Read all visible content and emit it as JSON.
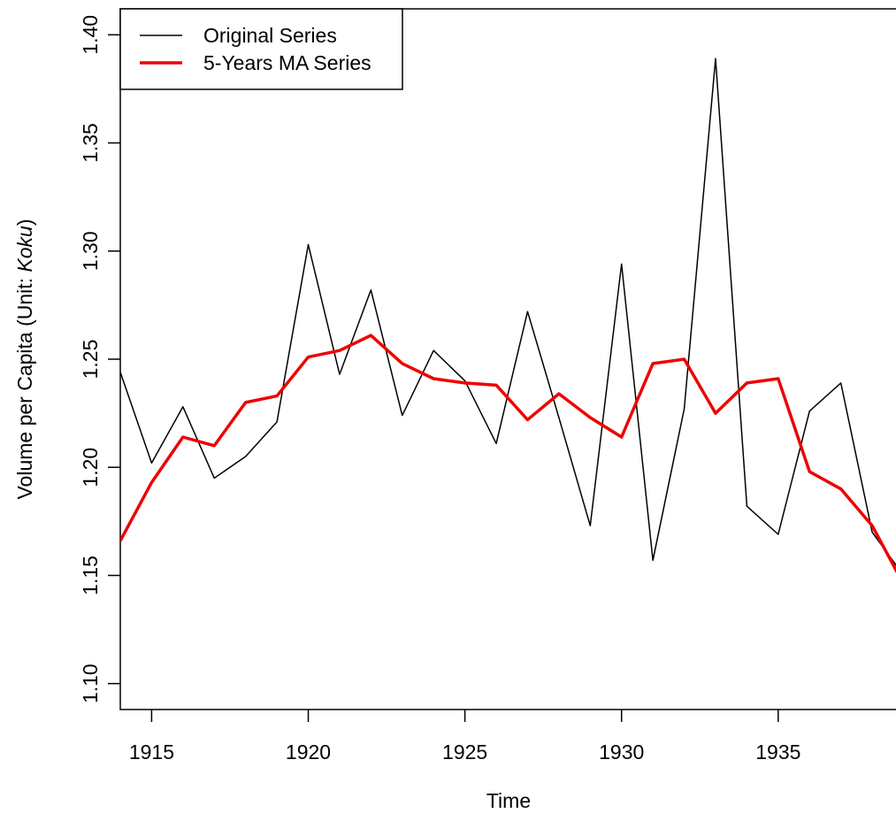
{
  "chart_data": {
    "type": "line",
    "x_label": "Time",
    "y_label": [
      "Volume per Capita (Unit: ",
      "Koku",
      ")"
    ],
    "x": [
      1914,
      1915,
      1916,
      1917,
      1918,
      1919,
      1920,
      1921,
      1922,
      1923,
      1924,
      1925,
      1926,
      1927,
      1928,
      1929,
      1930,
      1931,
      1932,
      1933,
      1934,
      1935,
      1936,
      1937,
      1938,
      1939
    ],
    "series": [
      {
        "name": "Original Series",
        "color": "#000000",
        "width": 1.5,
        "values": [
          1.244,
          1.202,
          1.228,
          1.195,
          1.205,
          1.221,
          1.303,
          1.243,
          1.282,
          1.224,
          1.254,
          1.24,
          1.211,
          1.272,
          1.223,
          1.173,
          1.294,
          1.157,
          1.227,
          1.389,
          1.182,
          1.169,
          1.226,
          1.239,
          1.17,
          1.15
        ]
      },
      {
        "name": "5-Years MA Series",
        "color": "#ee0000",
        "width": 3.5,
        "values": [
          1.166,
          1.193,
          1.214,
          1.21,
          1.23,
          1.233,
          1.251,
          1.254,
          1.261,
          1.248,
          1.241,
          1.239,
          1.238,
          1.222,
          1.234,
          1.223,
          1.214,
          1.248,
          1.25,
          1.225,
          1.239,
          1.241,
          1.198,
          1.19,
          1.173,
          1.146
        ]
      }
    ],
    "xlim": [
      1914,
      1938.76
    ],
    "xticks": [
      1915,
      1920,
      1925,
      1930,
      1935
    ],
    "ylim": [
      1.088,
      1.412
    ],
    "yticks": [
      {
        "value": 1.1,
        "label": "1.10"
      },
      1.15,
      {
        "value": 1.2,
        "label": "1.20"
      },
      1.25,
      {
        "value": 1.3,
        "label": "1.30"
      },
      1.35,
      {
        "value": 1.4,
        "label": "1.40"
      }
    ],
    "legend": "top-left"
  }
}
